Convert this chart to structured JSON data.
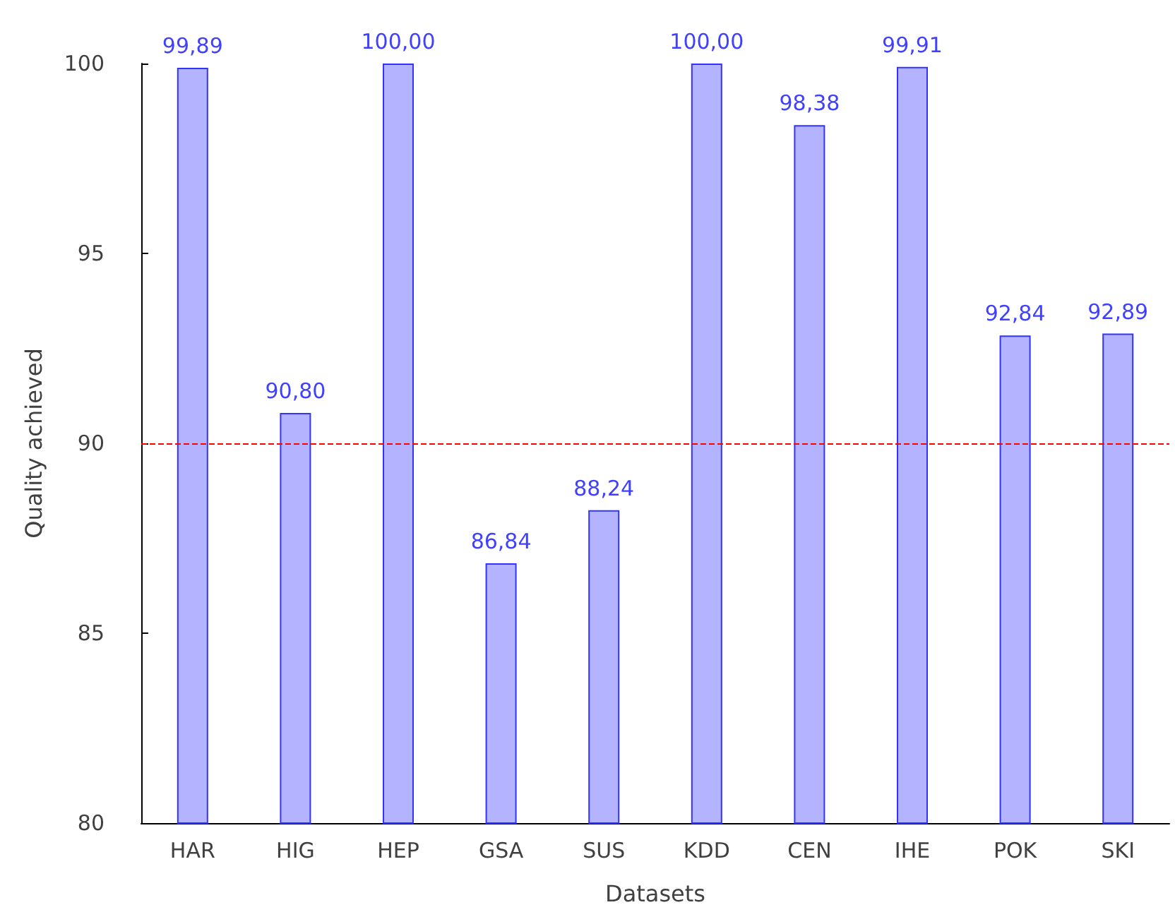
{
  "chart_data": {
    "type": "bar",
    "xlabel": "Datasets",
    "ylabel": "Quality achieved",
    "categories": [
      "HAR",
      "HIG",
      "HEP",
      "GSA",
      "SUS",
      "KDD",
      "CEN",
      "IHE",
      "POK",
      "SKI"
    ],
    "values": [
      99.89,
      90.8,
      100.0,
      86.84,
      88.24,
      100.0,
      98.38,
      99.91,
      92.84,
      92.89
    ],
    "value_labels": [
      "99,89",
      "90,80",
      "100,00",
      "86,84",
      "88,24",
      "100,00",
      "98,38",
      "99,91",
      "92,84",
      "92,89"
    ],
    "color": "#b3b3ff",
    "ylim": [
      80,
      100
    ],
    "yticks": [
      80,
      85,
      90,
      95,
      100
    ],
    "grid": false,
    "ref_lines": [
      {
        "axis": "y",
        "value": 90,
        "color": "#ff0000",
        "line_style": "dashed"
      }
    ]
  }
}
